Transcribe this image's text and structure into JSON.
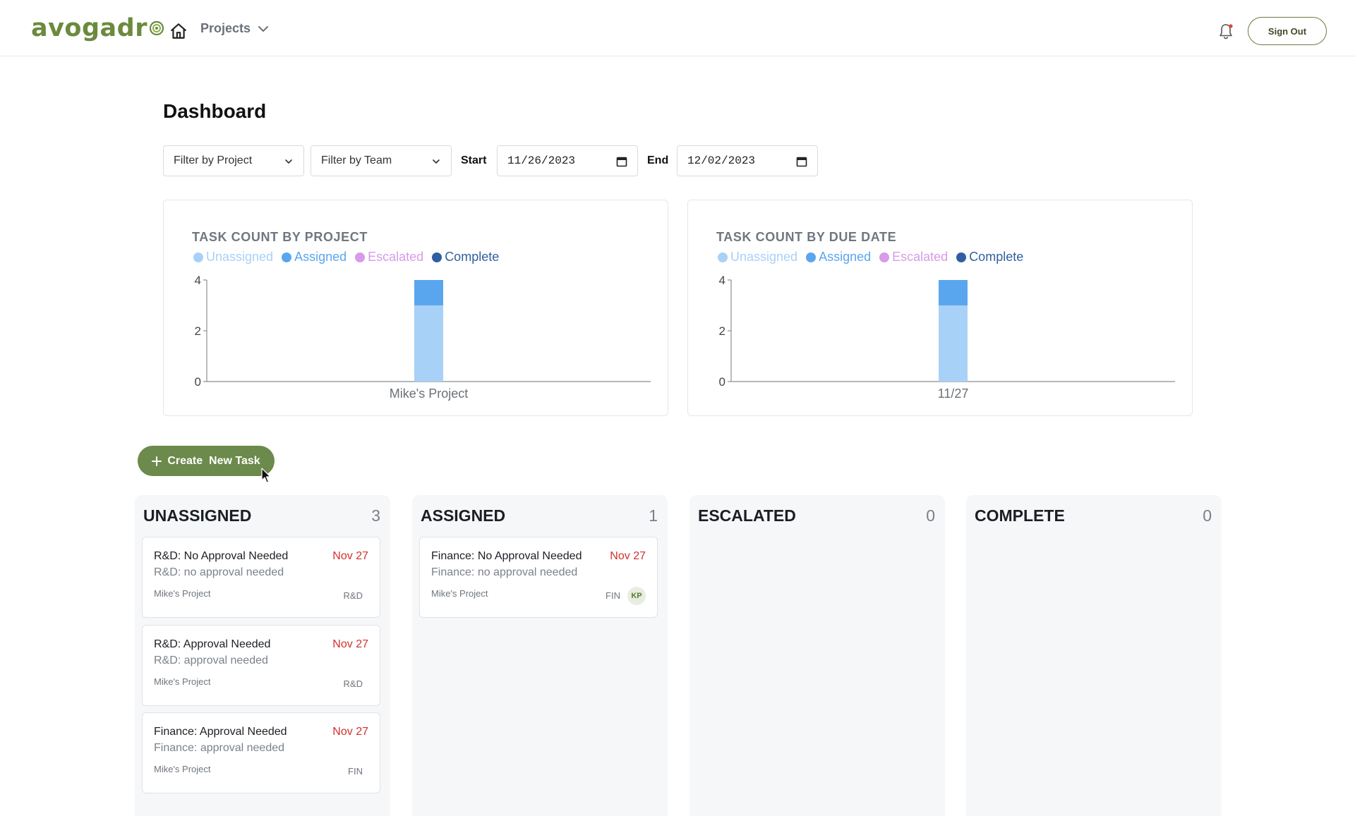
{
  "header": {
    "logo_text": "avogadr",
    "projects_label": "Projects",
    "sign_out_label": "Sign Out"
  },
  "page": {
    "title": "Dashboard"
  },
  "filters": {
    "project_placeholder": "Filter by Project",
    "team_placeholder": "Filter by Team",
    "start_label": "Start",
    "start_value": "11/26/2023",
    "end_label": "End",
    "end_value": "12/02/2023"
  },
  "legend": [
    {
      "label": "Unassigned",
      "color": "#a8d1f7"
    },
    {
      "label": "Assigned",
      "color": "#5aa6ee"
    },
    {
      "label": "Escalated",
      "color": "#d79be8"
    },
    {
      "label": "Complete",
      "color": "#2f5fa0"
    }
  ],
  "chart_data": [
    {
      "type": "bar",
      "stacked": true,
      "title": "TASK COUNT BY PROJECT",
      "categories": [
        "Mike's Project"
      ],
      "series": [
        {
          "name": "Unassigned",
          "values": [
            3
          ]
        },
        {
          "name": "Assigned",
          "values": [
            1
          ]
        },
        {
          "name": "Escalated",
          "values": [
            0
          ]
        },
        {
          "name": "Complete",
          "values": [
            0
          ]
        }
      ],
      "yticks": [
        0,
        2,
        4
      ],
      "ylim": [
        0,
        4
      ],
      "legend_position": "top-left"
    },
    {
      "type": "bar",
      "stacked": true,
      "title": "TASK COUNT BY DUE DATE",
      "categories": [
        "11/27"
      ],
      "series": [
        {
          "name": "Unassigned",
          "values": [
            3
          ]
        },
        {
          "name": "Assigned",
          "values": [
            1
          ]
        },
        {
          "name": "Escalated",
          "values": [
            0
          ]
        },
        {
          "name": "Complete",
          "values": [
            0
          ]
        }
      ],
      "yticks": [
        0,
        2,
        4
      ],
      "ylim": [
        0,
        4
      ],
      "legend_position": "top-left"
    }
  ],
  "create_task_label": "Create  New Task",
  "columns": [
    {
      "title": "UNASSIGNED",
      "count": "3",
      "tasks": [
        {
          "title": "R&D: No Approval Needed",
          "due": "Nov 27",
          "desc": "R&D: no approval needed",
          "project": "Mike's Project",
          "team": "R&D"
        },
        {
          "title": "R&D: Approval Needed",
          "due": "Nov 27",
          "desc": "R&D: approval needed",
          "project": "Mike's Project",
          "team": "R&D"
        },
        {
          "title": "Finance: Approval Needed",
          "due": "Nov 27",
          "desc": "Finance: approval needed",
          "project": "Mike's Project",
          "team": "FIN"
        }
      ]
    },
    {
      "title": "ASSIGNED",
      "count": "1",
      "tasks": [
        {
          "title": "Finance: No Approval Needed",
          "due": "Nov 27",
          "desc": "Finance: no approval needed",
          "project": "Mike's Project",
          "team": "FIN",
          "assignee": "KP"
        }
      ]
    },
    {
      "title": "ESCALATED",
      "count": "0",
      "tasks": []
    },
    {
      "title": "COMPLETE",
      "count": "0",
      "tasks": []
    }
  ]
}
